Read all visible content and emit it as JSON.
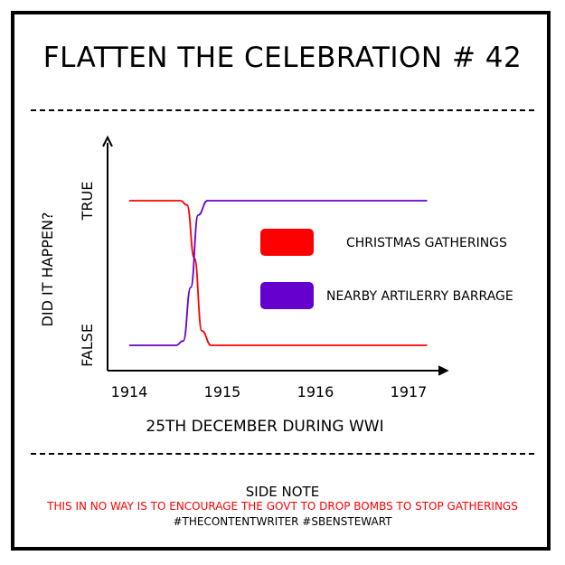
{
  "page": {
    "title": "FLATTEN THE CELEBRATION # 42",
    "footer": {
      "heading": "SIDE NOTE",
      "warning": "THIS IN NO WAY IS TO ENCOURAGE THE GOVT TO DROP BOMBS TO STOP GATHERINGS",
      "tags": "#THECONTENTWRITER #SBENSTEWART"
    }
  },
  "chart_data": {
    "type": "line",
    "xlabel": "25TH DECEMBER DURING WWI",
    "ylabel": "DID IT HAPPEN?",
    "x_ticks": [
      "1914",
      "1915",
      "1916",
      "1917"
    ],
    "y_ticks": [
      "FALSE",
      "TRUE"
    ],
    "xlim": [
      1913.85,
      1917.2
    ],
    "ylim": [
      0,
      1
    ],
    "grid": false,
    "legend_position": "center-right",
    "series": [
      {
        "name": "CHRISTMAS GATHERINGS",
        "color": "#ff0000",
        "x": [
          1914.0,
          1914.55,
          1914.62,
          1914.7,
          1914.78,
          1914.88,
          1915.0,
          1916.0,
          1917.0,
          1917.2
        ],
        "y": [
          1,
          1,
          0.97,
          0.6,
          0.1,
          0,
          0,
          0,
          0,
          0
        ]
      },
      {
        "name": "NEARBY ARTILERRY BARRAGE",
        "color": "#6600cc",
        "x": [
          1914.0,
          1914.5,
          1914.58,
          1914.66,
          1914.74,
          1914.84,
          1915.0,
          1916.0,
          1917.0,
          1917.2
        ],
        "y": [
          0,
          0,
          0.03,
          0.4,
          0.9,
          1,
          1,
          1,
          1,
          1
        ]
      }
    ]
  }
}
